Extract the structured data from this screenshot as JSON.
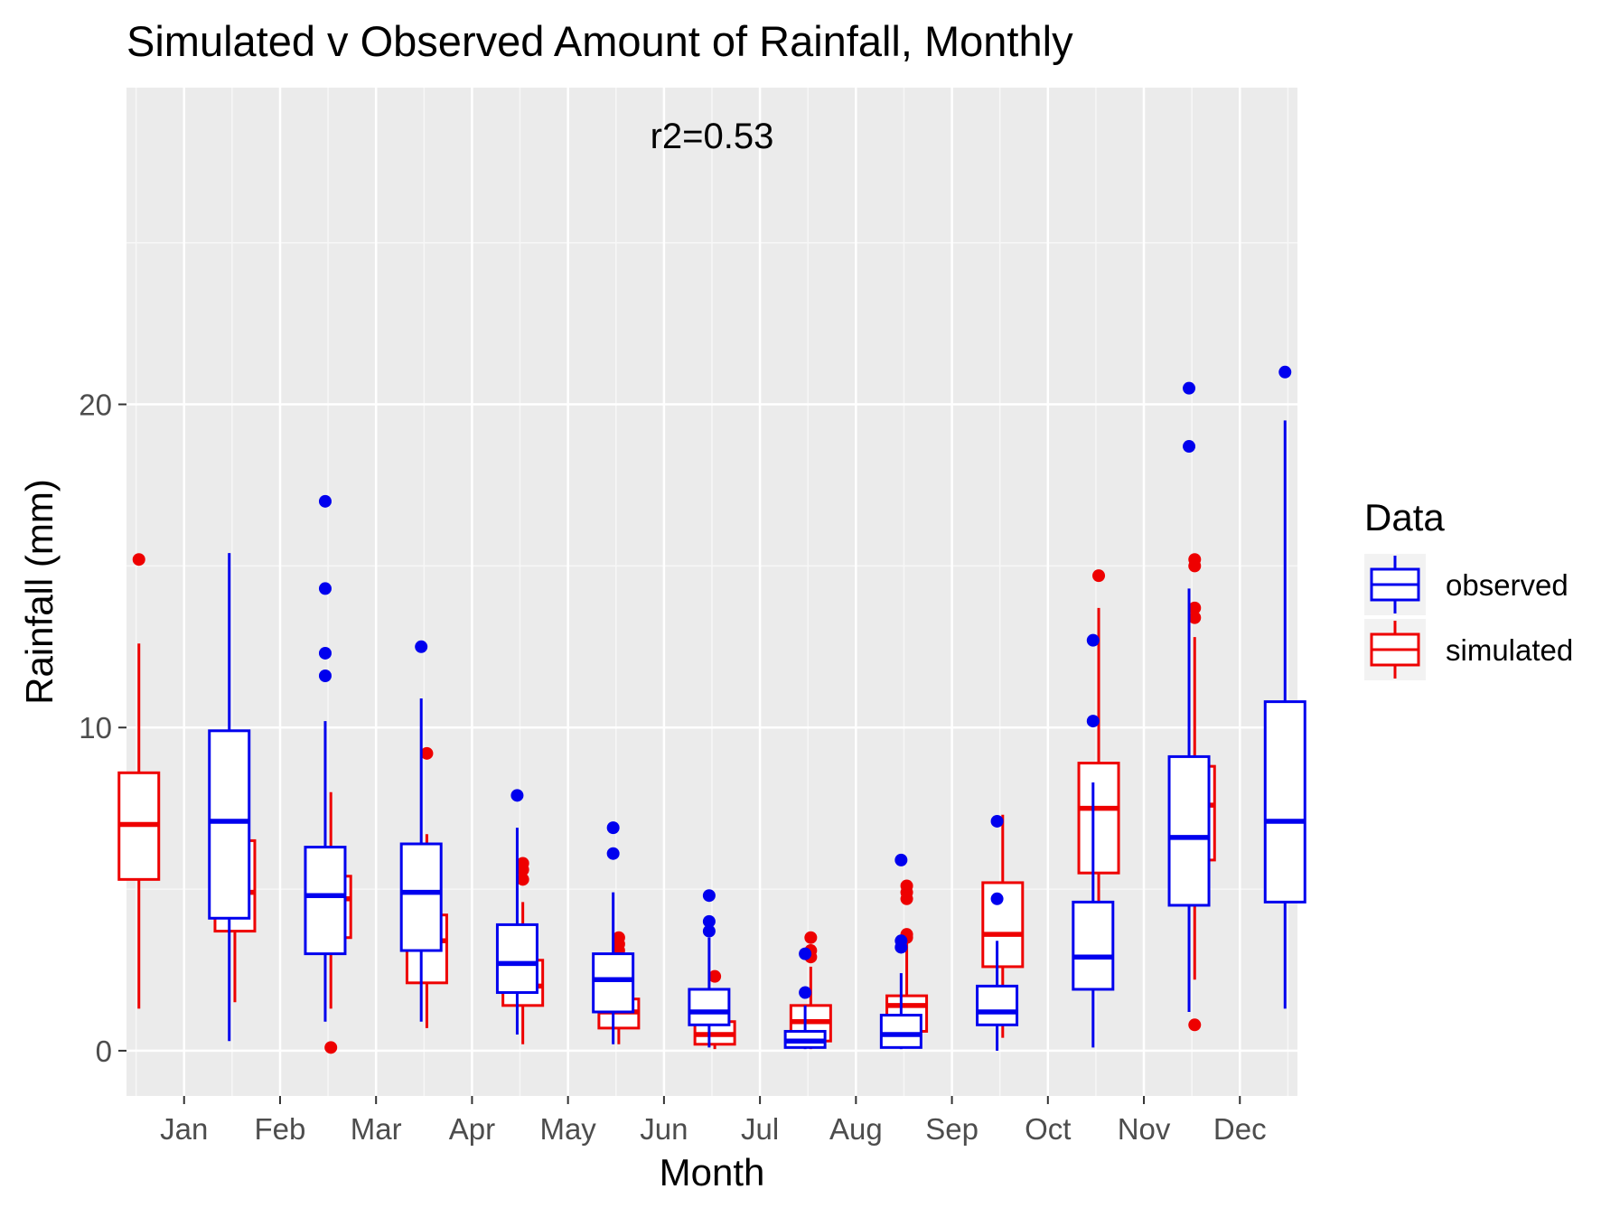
{
  "chart_data": {
    "type": "boxplot",
    "title": "Simulated v Observed Amount of Rainfall, Monthly",
    "xlabel": "Month",
    "ylabel": "Rainfall (mm)",
    "annotation": "r2=0.53",
    "ylim": [
      -1.4,
      29.8
    ],
    "yticks": [
      0,
      10,
      20
    ],
    "grid": true,
    "legend": {
      "title": "Data",
      "position": "right",
      "entries": [
        {
          "label": "observed",
          "color": "#0000ee"
        },
        {
          "label": "simulated",
          "color": "#ee0000"
        }
      ]
    },
    "categories": [
      "Jan",
      "Feb",
      "Mar",
      "Apr",
      "May",
      "Jun",
      "Jul",
      "Aug",
      "Sep",
      "Oct",
      "Nov",
      "Dec"
    ],
    "series": [
      {
        "name": "simulated",
        "color": "#ee0000",
        "boxes": [
          {
            "low": 1.3,
            "q1": 5.3,
            "median": 7.0,
            "q3": 8.6,
            "high": 12.6,
            "outliers": [
              15.2
            ]
          },
          {
            "low": 1.5,
            "q1": 3.7,
            "median": 4.9,
            "q3": 6.5,
            "high": 9.6,
            "outliers": []
          },
          {
            "low": 1.3,
            "q1": 3.5,
            "median": 4.7,
            "q3": 5.4,
            "high": 8.0,
            "outliers": [
              0.1
            ]
          },
          {
            "low": 0.7,
            "q1": 2.1,
            "median": 3.4,
            "q3": 4.2,
            "high": 6.7,
            "outliers": [
              9.2
            ]
          },
          {
            "low": 0.2,
            "q1": 1.4,
            "median": 2.0,
            "q3": 2.8,
            "high": 4.6,
            "outliers": [
              5.3,
              5.6,
              5.8
            ]
          },
          {
            "low": 0.2,
            "q1": 0.7,
            "median": 1.2,
            "q3": 1.6,
            "high": 2.9,
            "outliers": [
              3.1,
              3.3,
              3.5
            ]
          },
          {
            "low": 0.05,
            "q1": 0.2,
            "median": 0.5,
            "q3": 0.9,
            "high": 1.7,
            "outliers": [
              2.3
            ]
          },
          {
            "low": 0.05,
            "q1": 0.3,
            "median": 0.9,
            "q3": 1.4,
            "high": 2.6,
            "outliers": [
              2.9,
              3.1,
              3.5
            ]
          },
          {
            "low": 0.1,
            "q1": 0.6,
            "median": 1.4,
            "q3": 1.7,
            "high": 3.4,
            "outliers": [
              3.5,
              3.6,
              4.7,
              4.9,
              5.1
            ]
          },
          {
            "low": 0.4,
            "q1": 2.6,
            "median": 3.6,
            "q3": 5.2,
            "high": 7.3,
            "outliers": []
          },
          {
            "low": 2.1,
            "q1": 5.5,
            "median": 7.5,
            "q3": 8.9,
            "high": 13.7,
            "outliers": [
              14.7
            ]
          },
          {
            "low": 2.2,
            "q1": 5.9,
            "median": 7.6,
            "q3": 8.8,
            "high": 12.8,
            "outliers": [
              0.8,
              13.4,
              13.7,
              15.0,
              15.2
            ]
          }
        ]
      },
      {
        "name": "observed",
        "color": "#0000ee",
        "boxes": [
          {
            "low": 0.3,
            "q1": 4.1,
            "median": 7.1,
            "q3": 9.9,
            "high": 15.4,
            "outliers": []
          },
          {
            "low": 0.9,
            "q1": 3.0,
            "median": 4.8,
            "q3": 6.3,
            "high": 10.2,
            "outliers": [
              11.6,
              12.3,
              14.3,
              17.0
            ]
          },
          {
            "low": 0.9,
            "q1": 3.1,
            "median": 4.9,
            "q3": 6.4,
            "high": 10.9,
            "outliers": [
              12.5
            ]
          },
          {
            "low": 0.5,
            "q1": 1.8,
            "median": 2.7,
            "q3": 3.9,
            "high": 6.9,
            "outliers": [
              7.9
            ]
          },
          {
            "low": 0.2,
            "q1": 1.2,
            "median": 2.2,
            "q3": 3.0,
            "high": 4.9,
            "outliers": [
              6.1,
              6.9
            ]
          },
          {
            "low": 0.1,
            "q1": 0.8,
            "median": 1.2,
            "q3": 1.9,
            "high": 3.5,
            "outliers": [
              3.7,
              4.0,
              4.8
            ]
          },
          {
            "low": 0.05,
            "q1": 0.1,
            "median": 0.3,
            "q3": 0.6,
            "high": 1.4,
            "outliers": [
              1.8,
              3.0
            ]
          },
          {
            "low": 0.05,
            "q1": 0.1,
            "median": 0.5,
            "q3": 1.1,
            "high": 2.4,
            "outliers": [
              3.2,
              3.4,
              5.9
            ]
          },
          {
            "low": 0.0,
            "q1": 0.8,
            "median": 1.2,
            "q3": 2.0,
            "high": 3.4,
            "outliers": [
              4.7,
              7.1
            ]
          },
          {
            "low": 0.1,
            "q1": 1.9,
            "median": 2.9,
            "q3": 4.6,
            "high": 8.3,
            "outliers": [
              10.2,
              12.7
            ]
          },
          {
            "low": 1.2,
            "q1": 4.5,
            "median": 6.6,
            "q3": 9.1,
            "high": 14.3,
            "outliers": [
              18.7,
              20.5
            ]
          },
          {
            "low": 1.3,
            "q1": 4.6,
            "median": 7.1,
            "q3": 10.8,
            "high": 19.5,
            "outliers": [
              21.0
            ]
          }
        ]
      }
    ]
  }
}
